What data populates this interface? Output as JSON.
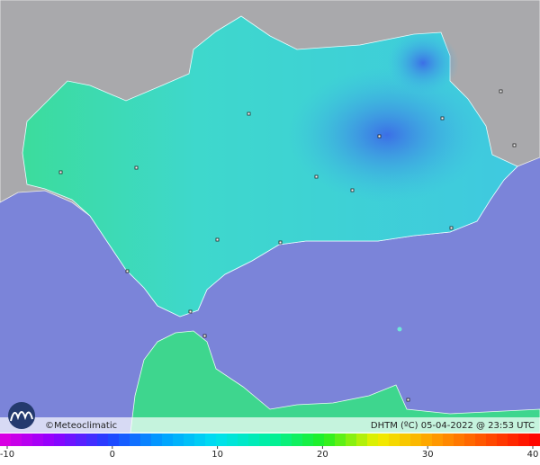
{
  "header": {
    "brand": "©Meteoclimatic",
    "caption": "DHTM (ºC)  05-04-2022 @ 23:53 UTC"
  },
  "colorbar": {
    "ticks": [
      -10,
      0,
      10,
      20,
      30,
      40
    ]
  }
}
